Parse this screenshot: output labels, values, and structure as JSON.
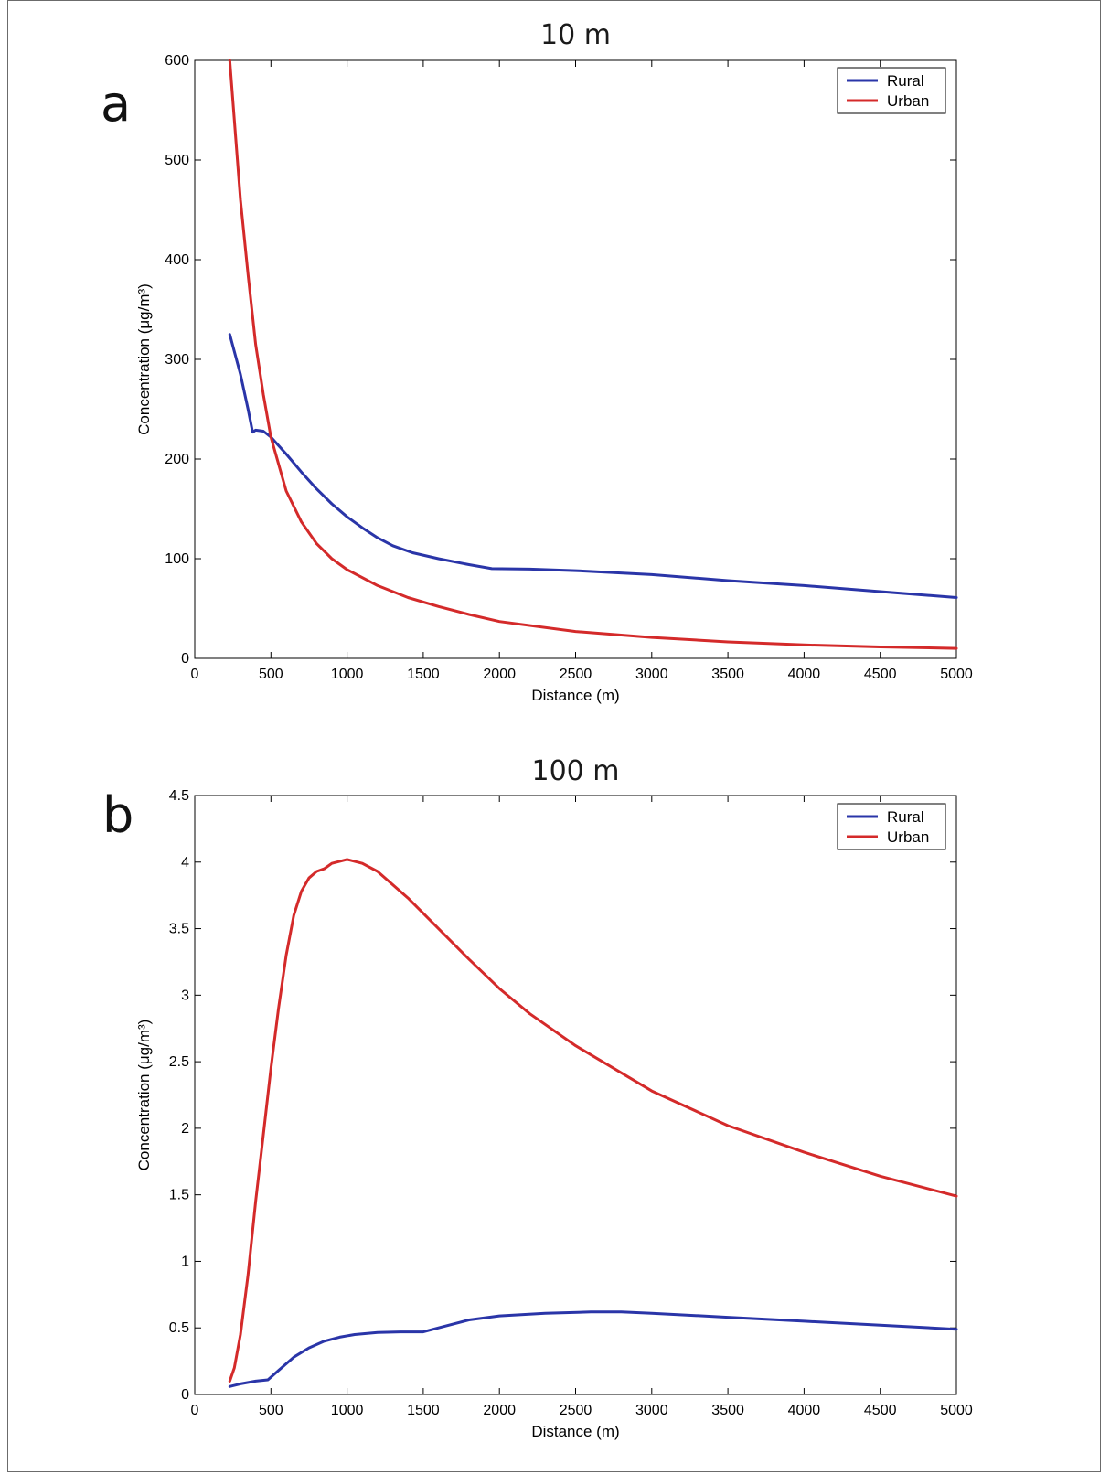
{
  "figure": {
    "panels": [
      {
        "letter": "a"
      },
      {
        "letter": "b"
      }
    ]
  },
  "chart_data": [
    {
      "type": "line",
      "title": "10 m",
      "xlabel": "Distance (m)",
      "ylabel": "Concentration (μg/m³)",
      "xlim": [
        0,
        5000
      ],
      "ylim": [
        0,
        600
      ],
      "xticks": [
        0,
        500,
        1000,
        1500,
        2000,
        2500,
        3000,
        3500,
        4000,
        4500,
        5000
      ],
      "yticks": [
        0,
        100,
        200,
        300,
        400,
        500,
        600
      ],
      "grid": false,
      "legend_position": "top-right",
      "series": [
        {
          "name": "Rural",
          "color": "#2a35a8",
          "x": [
            230,
            300,
            350,
            380,
            400,
            450,
            500,
            600,
            700,
            800,
            900,
            1000,
            1100,
            1200,
            1300,
            1430,
            1600,
            1800,
            1950,
            2200,
            2500,
            3000,
            3500,
            4000,
            4500,
            5000
          ],
          "y": [
            325,
            285,
            250,
            227,
            229,
            228,
            222,
            205,
            187,
            170,
            155,
            142,
            131,
            121,
            113,
            106,
            100,
            94,
            90,
            89.5,
            88,
            84,
            78,
            73,
            67,
            61
          ]
        },
        {
          "name": "Urban",
          "color": "#d42a2a",
          "x": [
            230,
            260,
            300,
            350,
            400,
            450,
            500,
            600,
            700,
            800,
            900,
            1000,
            1200,
            1400,
            1600,
            1800,
            2000,
            2500,
            3000,
            3500,
            4000,
            4500,
            5000
          ],
          "y": [
            600,
            540,
            460,
            385,
            315,
            265,
            222,
            168,
            137,
            115,
            100,
            89,
            73,
            61,
            52,
            44,
            37,
            27,
            21,
            16.5,
            13.5,
            11.5,
            10
          ]
        }
      ]
    },
    {
      "type": "line",
      "title": "100 m",
      "xlabel": "Distance (m)",
      "ylabel": "Concentration (μg/m³)",
      "xlim": [
        0,
        5000
      ],
      "ylim": [
        0,
        4.5
      ],
      "xticks": [
        0,
        500,
        1000,
        1500,
        2000,
        2500,
        3000,
        3500,
        4000,
        4500,
        5000
      ],
      "yticks": [
        0,
        0.5,
        1,
        1.5,
        2,
        2.5,
        3,
        3.5,
        4,
        4.5
      ],
      "grid": false,
      "legend_position": "top-right",
      "series": [
        {
          "name": "Rural",
          "color": "#2a35a8",
          "x": [
            230,
            300,
            400,
            480,
            550,
            650,
            750,
            850,
            950,
            1050,
            1200,
            1350,
            1500,
            1600,
            1800,
            2000,
            2300,
            2600,
            2800,
            3000,
            3500,
            4000,
            4500,
            5000
          ],
          "y": [
            0.06,
            0.08,
            0.1,
            0.11,
            0.18,
            0.28,
            0.35,
            0.4,
            0.43,
            0.45,
            0.465,
            0.47,
            0.47,
            0.5,
            0.56,
            0.59,
            0.61,
            0.62,
            0.62,
            0.61,
            0.58,
            0.55,
            0.52,
            0.49
          ]
        },
        {
          "name": "Urban",
          "color": "#d42a2a",
          "x": [
            230,
            260,
            300,
            350,
            400,
            450,
            500,
            550,
            600,
            650,
            700,
            750,
            800,
            850,
            900,
            1000,
            1100,
            1200,
            1400,
            1600,
            1800,
            2000,
            2200,
            2500,
            3000,
            3500,
            4000,
            4500,
            5000
          ],
          "y": [
            0.1,
            0.2,
            0.45,
            0.9,
            1.45,
            1.95,
            2.45,
            2.9,
            3.3,
            3.6,
            3.78,
            3.88,
            3.93,
            3.95,
            3.99,
            4.02,
            3.99,
            3.93,
            3.73,
            3.5,
            3.27,
            3.05,
            2.86,
            2.62,
            2.28,
            2.02,
            1.82,
            1.64,
            1.49
          ]
        }
      ]
    }
  ]
}
